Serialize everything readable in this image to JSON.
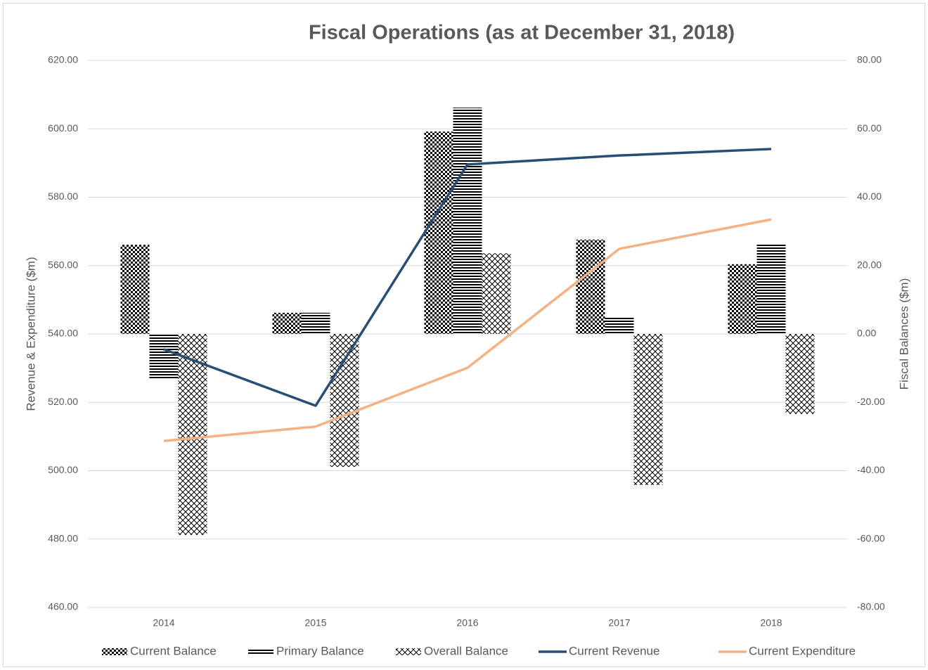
{
  "chart_data": {
    "type": "combo",
    "title": "Fiscal Operations (as at December 31, 2018)",
    "ylabel": "Revenue & Expenditure ($m)",
    "y2label": "Fiscal Balances ($m)",
    "categories": [
      "2014",
      "2015",
      "2016",
      "2017",
      "2018"
    ],
    "series": [
      {
        "name": "Current Balance",
        "type": "bar",
        "axis": "y2",
        "color": "#000000",
        "pattern": "checker",
        "values": [
          26.1,
          6.2,
          59.2,
          27.6,
          20.4
        ]
      },
      {
        "name": "Primary Balance",
        "type": "bar",
        "axis": "y2",
        "color": "#000000",
        "pattern": "hlines",
        "values": [
          -13.2,
          6.2,
          66.2,
          4.9,
          26.3
        ]
      },
      {
        "name": "Overall Balance",
        "type": "bar",
        "axis": "y2",
        "color": "#000000",
        "pattern": "cross",
        "values": [
          -58.8,
          -38.9,
          23.6,
          -44.2,
          -23.4
        ]
      },
      {
        "name": "Current Revenue",
        "type": "line",
        "color": "#264e77",
        "values": [
          535.5,
          519.0,
          589.6,
          592.2,
          594.1
        ]
      },
      {
        "name": "Current Expenditure",
        "type": "line",
        "color": "#f4b183",
        "values": [
          508.7,
          512.9,
          530.1,
          564.9,
          573.5
        ]
      }
    ],
    "ylim": [
      460,
      620
    ],
    "yticks": [
      {
        "value": 460,
        "label": "460.00"
      },
      {
        "value": 480,
        "label": "480.00"
      },
      {
        "value": 500,
        "label": "500.00"
      },
      {
        "value": 520,
        "label": "520.00"
      },
      {
        "value": 540,
        "label": "540.00"
      },
      {
        "value": 560,
        "label": "560.00"
      },
      {
        "value": 580,
        "label": "580.00"
      },
      {
        "value": 600,
        "label": "600.00"
      },
      {
        "value": 620,
        "label": "620.00"
      }
    ],
    "y2lim": [
      -80,
      80
    ],
    "y2ticks": [
      {
        "value": -80,
        "label": "-80.00"
      },
      {
        "value": -60,
        "label": "-60.00"
      },
      {
        "value": -40,
        "label": "-40.00"
      },
      {
        "value": -20,
        "label": "-20.00"
      },
      {
        "value": 0,
        "label": "0.00"
      },
      {
        "value": 20,
        "label": "20.00"
      },
      {
        "value": 40,
        "label": "40.00"
      },
      {
        "value": 60,
        "label": "60.00"
      },
      {
        "value": 80,
        "label": "80.00"
      }
    ],
    "grid": true,
    "legend": "bottom"
  }
}
